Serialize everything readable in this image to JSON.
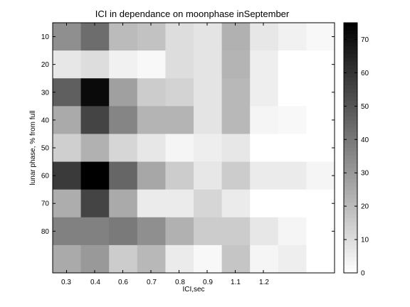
{
  "chart_data": {
    "type": "heatmap",
    "title": "ICI in dependance on moonphase inSeptember",
    "xlabel": "ICI,sec",
    "ylabel": "lunar phase, % from full",
    "x_ticks": [
      "0.3",
      "0.4",
      "0.6",
      "0.7",
      "0.8",
      "0.9",
      "1.1",
      "1.2"
    ],
    "y_ticks": [
      "10",
      "20",
      "30",
      "40",
      "50",
      "60",
      "70",
      "80"
    ],
    "rows": 9,
    "cols": 10,
    "values": [
      [
        33,
        43,
        20,
        18,
        10,
        8,
        23,
        7,
        4,
        2
      ],
      [
        7,
        10,
        4,
        2,
        10,
        8,
        22,
        5,
        0,
        0
      ],
      [
        47,
        72,
        28,
        15,
        13,
        8,
        21,
        5,
        0,
        0
      ],
      [
        25,
        55,
        36,
        22,
        22,
        8,
        21,
        3,
        2,
        0
      ],
      [
        14,
        23,
        12,
        7,
        3,
        5,
        7,
        0,
        0,
        0
      ],
      [
        58,
        75,
        45,
        26,
        15,
        7,
        15,
        6,
        6,
        3
      ],
      [
        24,
        55,
        25,
        6,
        6,
        12,
        6,
        0,
        0,
        0
      ],
      [
        37,
        37,
        39,
        33,
        23,
        15,
        15,
        7,
        3,
        0
      ],
      [
        25,
        30,
        15,
        21,
        6,
        2,
        17,
        3,
        5,
        0
      ]
    ],
    "colorbar": {
      "min": 0,
      "max": 75,
      "ticks": [
        "0",
        "10",
        "20",
        "30",
        "40",
        "50",
        "60",
        "70"
      ],
      "colormap": "gray-reversed"
    }
  }
}
